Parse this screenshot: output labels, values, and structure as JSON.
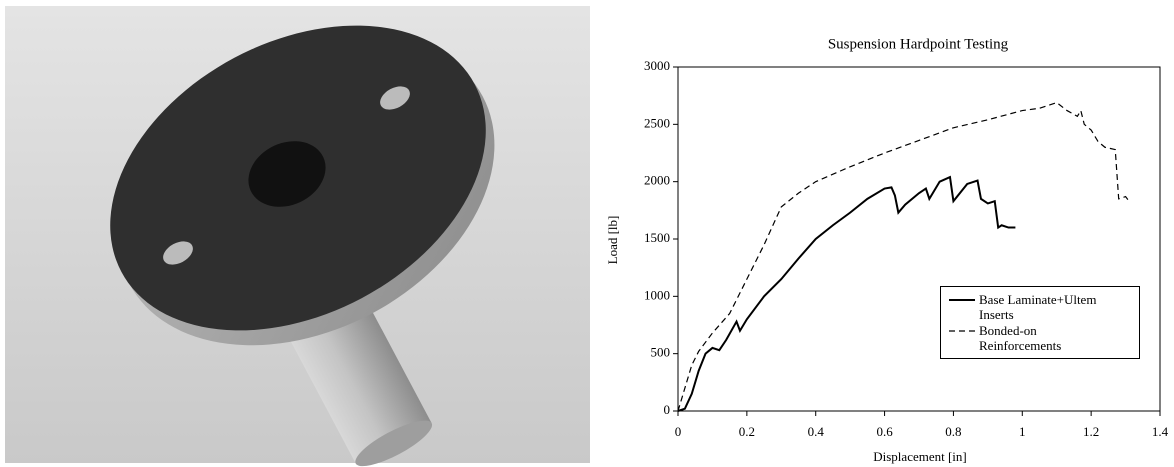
{
  "chart_data": {
    "type": "line",
    "title": "Suspension Hardpoint Testing",
    "x_label": "Displacement  [in]",
    "y_label": "Load [lb]",
    "xlim": [
      0,
      1.4
    ],
    "xticks": [
      0,
      0.2,
      0.4,
      0.6,
      0.8,
      1,
      1.2,
      1.4
    ],
    "ylim": [
      0,
      3000
    ],
    "yticks": [
      0,
      500,
      1000,
      1500,
      2000,
      2500,
      3000
    ],
    "grid": false,
    "legend_position": "lower right",
    "series": [
      {
        "name": "Base Laminate+Ultem Inserts",
        "color": "#000000",
        "dashed": false,
        "x": [
          0,
          0.02,
          0.04,
          0.06,
          0.08,
          0.1,
          0.12,
          0.14,
          0.17,
          0.18,
          0.2,
          0.25,
          0.3,
          0.35,
          0.4,
          0.45,
          0.5,
          0.55,
          0.6,
          0.62,
          0.63,
          0.64,
          0.66,
          0.7,
          0.72,
          0.73,
          0.76,
          0.79,
          0.8,
          0.84,
          0.87,
          0.88,
          0.9,
          0.92,
          0.93,
          0.94,
          0.96,
          0.98
        ],
        "values": [
          0,
          20,
          150,
          350,
          500,
          550,
          530,
          620,
          780,
          700,
          800,
          1000,
          1150,
          1330,
          1500,
          1620,
          1730,
          1850,
          1940,
          1950,
          1880,
          1730,
          1800,
          1900,
          1940,
          1850,
          2000,
          2040,
          1830,
          1980,
          2010,
          1850,
          1810,
          1830,
          1600,
          1620,
          1600,
          1600
        ]
      },
      {
        "name": "Bonded-on Reinforcements",
        "color": "#000000",
        "dashed": true,
        "x": [
          0,
          0.02,
          0.04,
          0.06,
          0.1,
          0.15,
          0.2,
          0.25,
          0.3,
          0.35,
          0.4,
          0.5,
          0.6,
          0.7,
          0.8,
          0.9,
          1.0,
          1.05,
          1.1,
          1.13,
          1.16,
          1.17,
          1.18,
          1.2,
          1.22,
          1.24,
          1.27,
          1.28,
          1.3,
          1.31
        ],
        "values": [
          0,
          200,
          400,
          520,
          680,
          850,
          1150,
          1450,
          1780,
          1900,
          2000,
          2130,
          2250,
          2360,
          2470,
          2540,
          2620,
          2640,
          2690,
          2620,
          2570,
          2620,
          2500,
          2450,
          2350,
          2300,
          2280,
          1850,
          1870,
          1830
        ]
      }
    ]
  }
}
